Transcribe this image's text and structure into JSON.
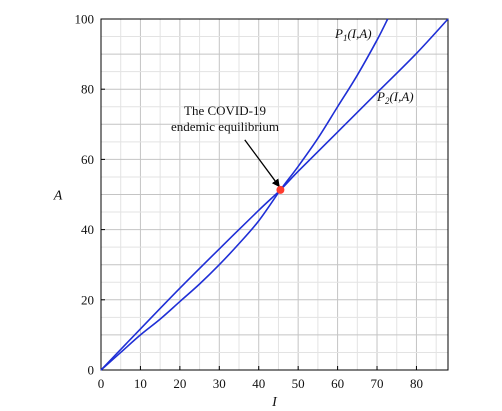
{
  "chart_data": {
    "type": "line",
    "xlabel": "I",
    "ylabel": "A",
    "xlim": [
      0,
      88
    ],
    "ylim": [
      0,
      100
    ],
    "x_ticks": [
      0,
      10,
      20,
      30,
      40,
      50,
      60,
      70,
      80
    ],
    "y_ticks": [
      0,
      20,
      40,
      60,
      80,
      100
    ],
    "grid": true,
    "series": [
      {
        "name": "P1(I,A)",
        "label_main": "P",
        "label_sub": "1",
        "label_args": "(I,A)",
        "color": "#1f2fd6",
        "x": [
          0,
          5,
          10,
          15,
          20,
          25,
          30,
          35,
          40,
          45.5,
          50,
          55,
          60,
          65,
          70,
          72.7
        ],
        "y": [
          0,
          5,
          10,
          14.5,
          19.5,
          24.5,
          30,
          36,
          42.5,
          51.3,
          58,
          66,
          75,
          84,
          94,
          100
        ]
      },
      {
        "name": "P2(I,A)",
        "label_main": "P",
        "label_sub": "2",
        "label_args": "(I,A)",
        "color": "#1f2fd6",
        "x": [
          0,
          10,
          20,
          30,
          40,
          45.5,
          50,
          60,
          70,
          80,
          88
        ],
        "y": [
          0,
          11.7,
          23.3,
          34.5,
          45.5,
          51.3,
          56.6,
          67.8,
          79,
          90.2,
          100
        ]
      }
    ],
    "equilibrium": {
      "x": 45.5,
      "y": 51.3,
      "color": "#ff3b2f"
    },
    "annotation": {
      "lines": [
        "The COVID-19",
        "endemic equilibrium"
      ],
      "arrow_from": {
        "x": 39,
        "y": 65
      },
      "arrow_to": {
        "x": 45.2,
        "y": 52.3
      }
    }
  }
}
